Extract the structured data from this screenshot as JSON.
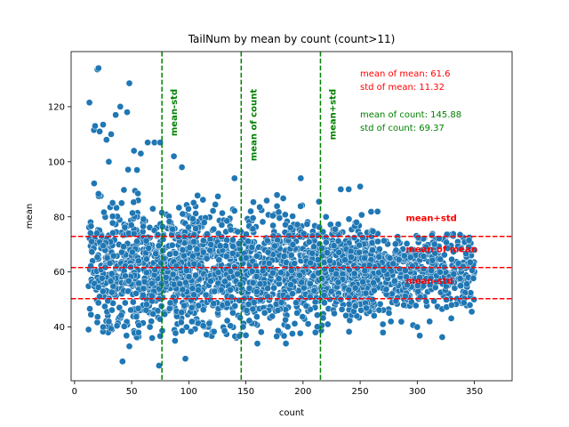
{
  "chart_data": {
    "type": "scatter",
    "title": "TailNum by mean by count (count>11)",
    "xlabel": "count",
    "ylabel": "mean",
    "xlim": [
      -3,
      383
    ],
    "ylim": [
      20.5,
      140
    ],
    "xticks": [
      0,
      50,
      100,
      150,
      200,
      250,
      300,
      350
    ],
    "yticks": [
      40,
      60,
      80,
      100,
      120
    ],
    "grid": false,
    "marker_color": "#1f77b4",
    "stats_text": {
      "mean_of_mean": "mean of mean: 61.6",
      "std_of_mean": "std of mean: 11.32",
      "mean_of_count": "mean of count: 145.88",
      "std_of_count": "std of count: 69.37"
    },
    "stats_values": {
      "mean_of_mean": 61.6,
      "std_of_mean": 11.32,
      "mean_of_count": 145.88,
      "std_of_count": 69.37
    },
    "vertical_lines": [
      {
        "label": "mean-std",
        "x": 76.51,
        "color": "#008000"
      },
      {
        "label": "mean of count",
        "x": 145.88,
        "color": "#008000"
      },
      {
        "label": "mean+std",
        "x": 215.25,
        "color": "#008000"
      }
    ],
    "horizontal_lines": [
      {
        "label": "mean+std",
        "y": 72.92,
        "color": "#ff0000"
      },
      {
        "label": "mean of mean",
        "y": 61.6,
        "color": "#ff0000"
      },
      {
        "label": "mean-std",
        "y": 50.28,
        "color": "#ff0000"
      }
    ],
    "outliers": [
      [
        13,
        121.5
      ],
      [
        20,
        133.5
      ],
      [
        21,
        134
      ],
      [
        17,
        111.5
      ],
      [
        18,
        113
      ],
      [
        22,
        111
      ],
      [
        25,
        113.5
      ],
      [
        48,
        128.5
      ],
      [
        46,
        118
      ],
      [
        40,
        120
      ],
      [
        36,
        117
      ],
      [
        32,
        110
      ],
      [
        28,
        108
      ],
      [
        30,
        100
      ],
      [
        52,
        104
      ],
      [
        58,
        103
      ],
      [
        64,
        107
      ],
      [
        70,
        107
      ],
      [
        75,
        107
      ],
      [
        87,
        102
      ],
      [
        94,
        98
      ],
      [
        140,
        94
      ],
      [
        198,
        94
      ],
      [
        214,
        85.5
      ],
      [
        233,
        90
      ],
      [
        240,
        90
      ],
      [
        250,
        91
      ],
      [
        42,
        27.5
      ],
      [
        74,
        26
      ],
      [
        97,
        28.5
      ],
      [
        48,
        33
      ],
      [
        56,
        38
      ],
      [
        68,
        36
      ],
      [
        88,
        35
      ],
      [
        25,
        40
      ],
      [
        30,
        42
      ],
      [
        150,
        37
      ],
      [
        160,
        34
      ],
      [
        185,
        34
      ],
      [
        270,
        38
      ],
      [
        300,
        40
      ],
      [
        330,
        48
      ],
      [
        346,
        48
      ],
      [
        350,
        68
      ],
      [
        345,
        69
      ],
      [
        340,
        62
      ],
      [
        338,
        55
      ]
    ]
  }
}
